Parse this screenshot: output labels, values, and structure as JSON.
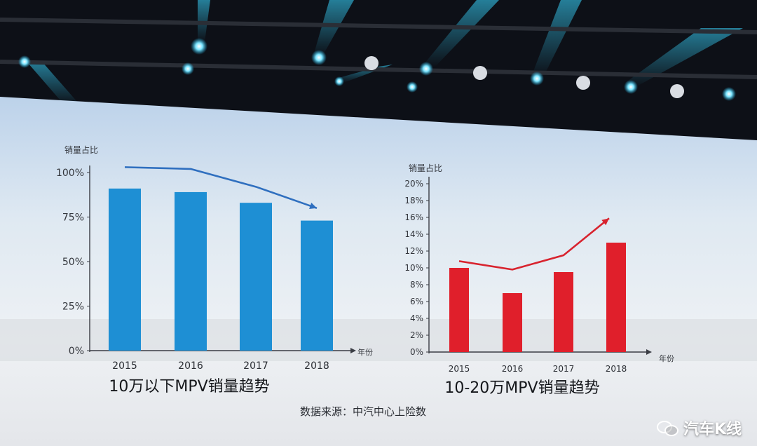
{
  "chart_data": [
    {
      "type": "bar",
      "title": "10万以下MPV销量趋势",
      "ylabel": "销量占比",
      "xlabel": "年份",
      "categories": [
        "2015",
        "2016",
        "2017",
        "2018"
      ],
      "values": [
        91,
        89,
        83,
        73
      ],
      "ylim": [
        0,
        100
      ],
      "yticks": [
        "0%",
        "25%",
        "50%",
        "75%",
        "100%"
      ],
      "ytick_values": [
        0,
        25,
        50,
        75,
        100
      ],
      "bar_color": "#1e8fd4",
      "trend_color": "#2f6fbf",
      "trend": [
        103,
        102,
        92,
        80
      ]
    },
    {
      "type": "bar",
      "title": "10-20万MPV销量趋势",
      "ylabel": "销量占比",
      "xlabel": "年份",
      "categories": [
        "2015",
        "2016",
        "2017",
        "2018"
      ],
      "values": [
        10,
        7,
        9.5,
        13
      ],
      "ylim": [
        0,
        20
      ],
      "yticks": [
        "0%",
        "2%",
        "4%",
        "6%",
        "8%",
        "10%",
        "12%",
        "14%",
        "16%",
        "18%",
        "20%"
      ],
      "ytick_values": [
        0,
        2,
        4,
        6,
        8,
        10,
        12,
        14,
        16,
        18,
        20
      ],
      "bar_color": "#e01f2b",
      "trend_color": "#d8232e",
      "trend": [
        10.8,
        9.8,
        11.5,
        15.9
      ]
    }
  ],
  "source_note": "数据来源：中汽中心上险数",
  "watermark": "汽车K线",
  "icon_names": [
    "wechat-icon"
  ]
}
